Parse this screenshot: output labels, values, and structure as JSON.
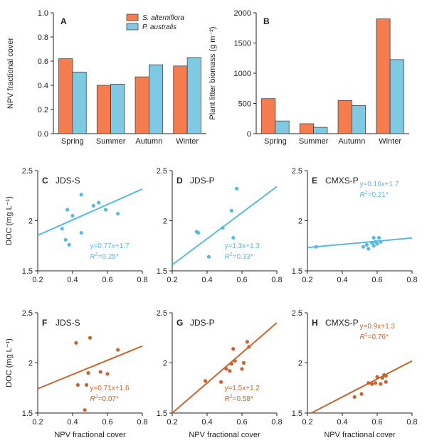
{
  "colors": {
    "s_alterniflora": "#F47C4F",
    "p_australis": "#7FC9E3",
    "orange_line": "#C8652F",
    "blue_line": "#57BBE0"
  },
  "chart_data": [
    {
      "type": "bar",
      "panel": "A",
      "categories": [
        "Spring",
        "Summer",
        "Autumn",
        "Winter"
      ],
      "series": [
        {
          "name": "S. alterniflora",
          "values": [
            0.62,
            0.4,
            0.47,
            0.56
          ]
        },
        {
          "name": "P. australis",
          "values": [
            0.51,
            0.41,
            0.57,
            0.63
          ]
        }
      ],
      "ylabel": "NPV fractional cover",
      "ylim": [
        0,
        1.0
      ],
      "yticks": [
        "0.0",
        "0.2",
        "0.4",
        "0.6",
        "0.8",
        "1.0"
      ],
      "legend": "top-center"
    },
    {
      "type": "bar",
      "panel": "B",
      "categories": [
        "Spring",
        "Summer",
        "Autumn",
        "Winter"
      ],
      "series": [
        {
          "name": "S. alterniflora",
          "values": [
            580,
            165,
            550,
            1900
          ]
        },
        {
          "name": "P. australis",
          "values": [
            210,
            105,
            465,
            1225
          ]
        }
      ],
      "ylabel": "Plant litter biomass (g m⁻²)",
      "ylim": [
        0,
        2000
      ],
      "yticks": [
        "0",
        "500",
        "1000",
        "1500",
        "2000"
      ]
    },
    {
      "type": "scatter",
      "panel": "C",
      "site": "JDS-S",
      "color": "blue",
      "points": [
        [
          0.34,
          1.92
        ],
        [
          0.36,
          1.81
        ],
        [
          0.37,
          2.11
        ],
        [
          0.38,
          1.76
        ],
        [
          0.4,
          2.05
        ],
        [
          0.45,
          2.26
        ],
        [
          0.45,
          1.88
        ],
        [
          0.52,
          2.15
        ],
        [
          0.55,
          2.18
        ],
        [
          0.59,
          2.11
        ],
        [
          0.66,
          2.07
        ]
      ],
      "fit": {
        "slope": 0.77,
        "intercept": 1.7
      },
      "equation": "y=0.77x+1.7",
      "r2": "=0.25*",
      "ylabel": "DOC (mg L⁻¹)",
      "xlim": [
        0.2,
        0.8
      ],
      "ylim": [
        1.5,
        2.5
      ]
    },
    {
      "type": "scatter",
      "panel": "D",
      "site": "JDS-P",
      "color": "blue",
      "points": [
        [
          0.34,
          1.89
        ],
        [
          0.35,
          1.88
        ],
        [
          0.41,
          1.64
        ],
        [
          0.49,
          1.93
        ],
        [
          0.54,
          2.1
        ],
        [
          0.55,
          1.83
        ],
        [
          0.57,
          2.32
        ]
      ],
      "fit": {
        "slope": 1.3,
        "intercept": 1.3
      },
      "equation": "y=1.3x+1.3",
      "r2": "=0.33*",
      "xlim": [
        0.2,
        0.8
      ],
      "ylim": [
        1.5,
        2.5
      ]
    },
    {
      "type": "scatter",
      "panel": "E",
      "site": "CMXS-P",
      "color": "blue",
      "points": [
        [
          0.25,
          1.74
        ],
        [
          0.52,
          1.74
        ],
        [
          0.54,
          1.76
        ],
        [
          0.55,
          1.72
        ],
        [
          0.57,
          1.78
        ],
        [
          0.58,
          1.83
        ],
        [
          0.58,
          1.75
        ],
        [
          0.59,
          1.79
        ],
        [
          0.6,
          1.77
        ],
        [
          0.61,
          1.83
        ],
        [
          0.62,
          1.79
        ]
      ],
      "fit": {
        "slope": 0.16,
        "intercept": 1.7
      },
      "equation": "y=0.16x+1.7",
      "r2": "=0.21*",
      "xlim": [
        0.2,
        0.8
      ],
      "ylim": [
        1.5,
        2.5
      ]
    },
    {
      "type": "scatter",
      "panel": "F",
      "site": "JDS-S",
      "color": "orange",
      "points": [
        [
          0.42,
          2.2
        ],
        [
          0.43,
          1.78
        ],
        [
          0.47,
          1.53
        ],
        [
          0.48,
          1.78
        ],
        [
          0.49,
          1.9
        ],
        [
          0.5,
          2.25
        ],
        [
          0.56,
          1.91
        ],
        [
          0.6,
          1.89
        ],
        [
          0.66,
          2.13
        ]
      ],
      "fit": {
        "slope": 0.71,
        "intercept": 1.6
      },
      "equation": "y=0.71x+1.6",
      "r2": "=0.07*",
      "ylabel": "DOC (mg L⁻¹)",
      "xlabel": "NPV fractional cover",
      "xlim": [
        0.2,
        0.8
      ],
      "ylim": [
        1.5,
        2.5
      ]
    },
    {
      "type": "scatter",
      "panel": "G",
      "site": "JDS-P",
      "color": "orange",
      "points": [
        [
          0.39,
          1.82
        ],
        [
          0.48,
          1.81
        ],
        [
          0.51,
          1.94
        ],
        [
          0.53,
          1.92
        ],
        [
          0.54,
          1.99
        ],
        [
          0.55,
          2.14
        ],
        [
          0.56,
          2.02
        ],
        [
          0.6,
          1.94
        ],
        [
          0.61,
          2.0
        ],
        [
          0.63,
          2.21
        ],
        [
          0.64,
          2.16
        ]
      ],
      "fit": {
        "slope": 1.5,
        "intercept": 1.2
      },
      "equation": "y=1.5x+1.2",
      "r2": "=0.58*",
      "xlabel": "NPV fractional cover",
      "xlim": [
        0.2,
        0.8
      ],
      "ylim": [
        1.5,
        2.5
      ]
    },
    {
      "type": "scatter",
      "panel": "H",
      "site": "CMXS-P",
      "color": "orange",
      "points": [
        [
          0.47,
          1.66
        ],
        [
          0.51,
          1.69
        ],
        [
          0.55,
          1.8
        ],
        [
          0.57,
          1.79
        ],
        [
          0.59,
          1.8
        ],
        [
          0.6,
          1.86
        ],
        [
          0.62,
          1.79
        ],
        [
          0.63,
          1.85
        ],
        [
          0.64,
          1.88
        ],
        [
          0.65,
          1.87
        ],
        [
          0.65,
          1.81
        ]
      ],
      "fit": {
        "slope": 0.9,
        "intercept": 1.3
      },
      "equation": "y=0.9x+1.3",
      "r2": "=0.76*",
      "xlabel": "NPV fractional cover",
      "xlim": [
        0.2,
        0.8
      ],
      "ylim": [
        1.5,
        2.5
      ]
    }
  ],
  "scatter_xticks": [
    "0.2",
    "0.4",
    "0.6",
    "0.8"
  ],
  "scatter_yticks": [
    "1.5",
    "2",
    "2.5"
  ]
}
